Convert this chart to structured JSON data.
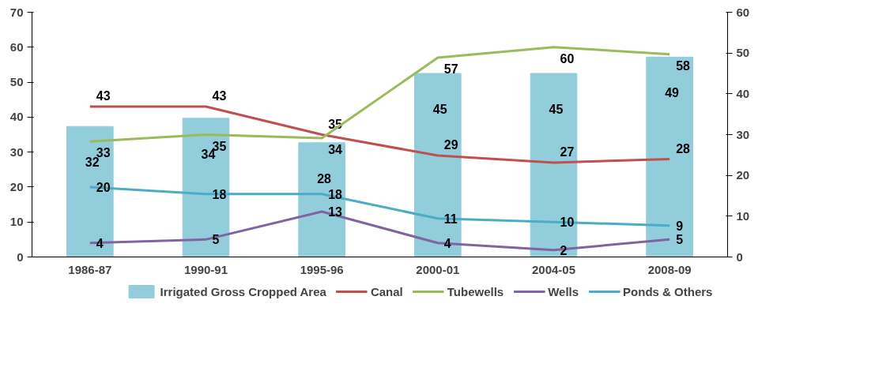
{
  "chart_data": {
    "type": "line",
    "categories": [
      "1986-87",
      "1990-91",
      "1995-96",
      "2000-01",
      "2004-05",
      "2008-09"
    ],
    "series": [
      {
        "name": "Irrigated Gross Cropped Area",
        "type": "bar",
        "axis": "y2",
        "color": "#92cddc",
        "values": [
          32,
          34,
          28,
          45,
          45,
          49
        ]
      },
      {
        "name": "Canal",
        "color": "#c0504d",
        "values": [
          43,
          43,
          35,
          29,
          27,
          28
        ]
      },
      {
        "name": "Tubewells",
        "color": "#9bbb59",
        "values": [
          33,
          35,
          34,
          57,
          60,
          58
        ]
      },
      {
        "name": "Wells",
        "color": "#8064a2",
        "values": [
          4,
          5,
          13,
          4,
          2,
          5
        ]
      },
      {
        "name": "Ponds & Others",
        "color": "#4bacc6",
        "values": [
          20,
          18,
          18,
          11,
          10,
          9
        ]
      }
    ],
    "ylim": [
      0,
      70
    ],
    "yticks": [
      0,
      10,
      20,
      30,
      40,
      50,
      60,
      70
    ],
    "y2lim": [
      0,
      60
    ],
    "y2ticks": [
      0,
      10,
      20,
      30,
      40,
      50,
      60
    ],
    "data_labels": true,
    "grid": false,
    "legend": "bottom",
    "marker": "none",
    "line_style": "solid"
  }
}
